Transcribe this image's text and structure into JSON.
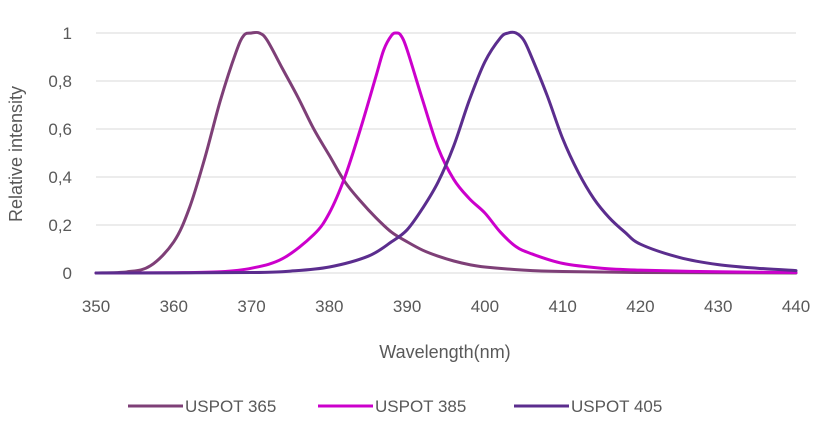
{
  "chart_data": {
    "type": "line",
    "title": "",
    "xlabel": "Wavelength(nm)",
    "ylabel": "Relative intensity",
    "xlim": [
      350,
      440
    ],
    "ylim": [
      0,
      1.0
    ],
    "x_ticks": [
      "350",
      "360",
      "370",
      "380",
      "390",
      "400",
      "410",
      "420",
      "430",
      "440"
    ],
    "x_tick_values": [
      350,
      360,
      370,
      380,
      390,
      400,
      410,
      420,
      430,
      440
    ],
    "y_ticks": [
      "0",
      "0,2",
      "0,4",
      "0,6",
      "0,8",
      "1"
    ],
    "y_tick_values": [
      0,
      0.2,
      0.4,
      0.6,
      0.8,
      1.0
    ],
    "grid": "horizontal",
    "legend_position": "bottom",
    "series": [
      {
        "name": "USPOT 365",
        "color": "#7e3f77",
        "points": [
          [
            350,
            0
          ],
          [
            354,
            0.005
          ],
          [
            357,
            0.03
          ],
          [
            360,
            0.13
          ],
          [
            362,
            0.27
          ],
          [
            364,
            0.48
          ],
          [
            366,
            0.72
          ],
          [
            368,
            0.92
          ],
          [
            369,
            0.99
          ],
          [
            370,
            1.0
          ],
          [
            371,
            1.0
          ],
          [
            372,
            0.97
          ],
          [
            374,
            0.85
          ],
          [
            376,
            0.73
          ],
          [
            378,
            0.6
          ],
          [
            380,
            0.49
          ],
          [
            382,
            0.38
          ],
          [
            384,
            0.3
          ],
          [
            386,
            0.23
          ],
          [
            388,
            0.17
          ],
          [
            390,
            0.13
          ],
          [
            392,
            0.095
          ],
          [
            394,
            0.07
          ],
          [
            396,
            0.05
          ],
          [
            398,
            0.035
          ],
          [
            400,
            0.025
          ],
          [
            405,
            0.012
          ],
          [
            410,
            0.006
          ],
          [
            420,
            0.002
          ],
          [
            440,
            0.0
          ]
        ]
      },
      {
        "name": "USPOT 385",
        "color": "#cc00cc",
        "points": [
          [
            350,
            0
          ],
          [
            360,
            0.001
          ],
          [
            366,
            0.005
          ],
          [
            370,
            0.02
          ],
          [
            374,
            0.06
          ],
          [
            378,
            0.16
          ],
          [
            380,
            0.25
          ],
          [
            382,
            0.4
          ],
          [
            384,
            0.6
          ],
          [
            386,
            0.82
          ],
          [
            387,
            0.93
          ],
          [
            388,
            0.99
          ],
          [
            388.6,
            1.0
          ],
          [
            389.2,
            0.99
          ],
          [
            390,
            0.93
          ],
          [
            392,
            0.72
          ],
          [
            394,
            0.52
          ],
          [
            396,
            0.39
          ],
          [
            398,
            0.31
          ],
          [
            400,
            0.25
          ],
          [
            402,
            0.17
          ],
          [
            404,
            0.11
          ],
          [
            406,
            0.08
          ],
          [
            410,
            0.04
          ],
          [
            415,
            0.02
          ],
          [
            420,
            0.012
          ],
          [
            430,
            0.005
          ],
          [
            440,
            0.002
          ]
        ]
      },
      {
        "name": "USPOT 405",
        "color": "#5b2d8e",
        "points": [
          [
            350,
            0
          ],
          [
            370,
            0.002
          ],
          [
            375,
            0.008
          ],
          [
            380,
            0.025
          ],
          [
            385,
            0.07
          ],
          [
            388,
            0.13
          ],
          [
            390,
            0.18
          ],
          [
            392,
            0.27
          ],
          [
            394,
            0.38
          ],
          [
            396,
            0.53
          ],
          [
            398,
            0.72
          ],
          [
            400,
            0.88
          ],
          [
            402,
            0.98
          ],
          [
            403,
            1.0
          ],
          [
            404,
            1.0
          ],
          [
            405,
            0.97
          ],
          [
            406,
            0.9
          ],
          [
            408,
            0.74
          ],
          [
            410,
            0.56
          ],
          [
            412,
            0.42
          ],
          [
            414,
            0.31
          ],
          [
            416,
            0.23
          ],
          [
            418,
            0.17
          ],
          [
            420,
            0.12
          ],
          [
            425,
            0.065
          ],
          [
            430,
            0.035
          ],
          [
            435,
            0.02
          ],
          [
            440,
            0.01
          ]
        ]
      }
    ]
  }
}
